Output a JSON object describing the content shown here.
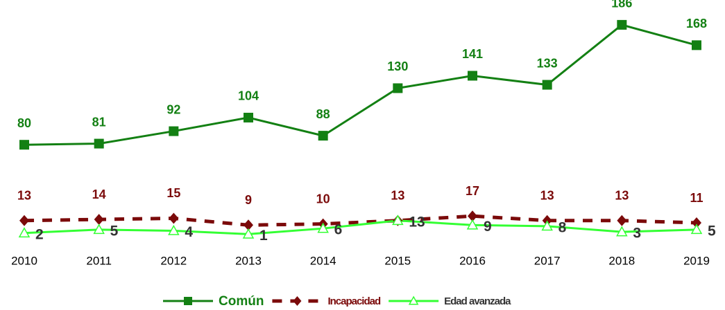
{
  "chart_data": {
    "type": "line",
    "categories": [
      "2010",
      "2011",
      "2012",
      "2013",
      "2014",
      "2015",
      "2016",
      "2017",
      "2018",
      "2019"
    ],
    "series": [
      {
        "name": "Común",
        "color": "#138013",
        "marker": "square",
        "dash": false,
        "label_position": "above",
        "values": [
          80,
          81,
          92,
          104,
          88,
          130,
          141,
          133,
          186,
          168
        ]
      },
      {
        "name": "Incapacidad",
        "color": "#7b0a0a",
        "marker": "diamond",
        "dash": true,
        "label_position": "above",
        "values": [
          13,
          14,
          15,
          9,
          10,
          13,
          17,
          13,
          13,
          11
        ]
      },
      {
        "name": "Edad avanzada",
        "color": "#33ff33",
        "marker": "triangle",
        "dash": false,
        "label_position": "right",
        "label_color": "#333333",
        "values": [
          2,
          5,
          4,
          1,
          6,
          13,
          9,
          8,
          3,
          5
        ]
      }
    ],
    "ylim": [
      0,
      200
    ],
    "legend": "bottom"
  }
}
